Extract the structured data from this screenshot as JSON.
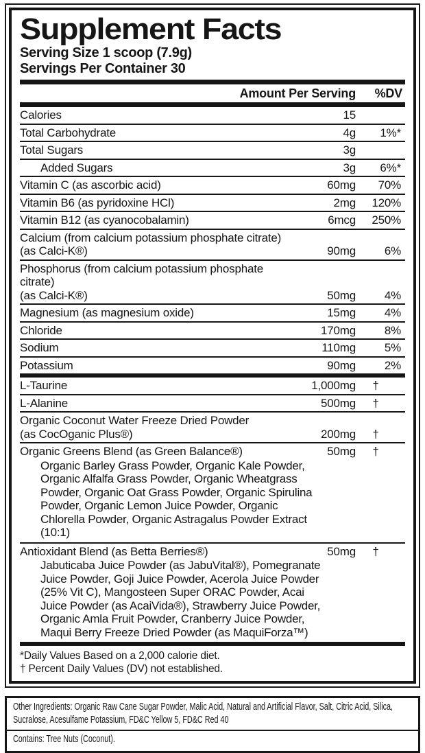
{
  "title": "Supplement Facts",
  "serving": {
    "size": "Serving Size 1 scoop (7.9g)",
    "per_container": "Servings Per Container 30"
  },
  "columns": {
    "amount": "Amount Per Serving",
    "dv": "%DV"
  },
  "rows": [
    {
      "name": [
        "Calories"
      ],
      "amount": "15",
      "dv": ""
    },
    {
      "name": [
        "Total Carbohydrate"
      ],
      "amount": "4g",
      "dv": "1%*"
    },
    {
      "name": [
        "Total Sugars"
      ],
      "amount": "3g",
      "dv": ""
    },
    {
      "name": [
        "Added Sugars"
      ],
      "indent": true,
      "amount": "3g",
      "dv": "6%*"
    },
    {
      "name": [
        "Vitamin C (as ascorbic acid)"
      ],
      "amount": "60mg",
      "dv": "70%"
    },
    {
      "name": [
        "Vitamin B6 (as pyridoxine HCl)"
      ],
      "amount": "2mg",
      "dv": "120%"
    },
    {
      "name": [
        "Vitamin B12 (as cyanocobalamin)"
      ],
      "amount": "6mcg",
      "dv": "250%"
    },
    {
      "name": [
        "Calcium (from calcium potassium phosphate citrate)",
        "(as Calci-K®)"
      ],
      "amount": "90mg",
      "dv": "6%"
    },
    {
      "name": [
        "Phosphorus (from calcium potassium phosphate citrate)",
        "(as Calci-K®)"
      ],
      "amount": "50mg",
      "dv": "4%"
    },
    {
      "name": [
        "Magnesium (as magnesium oxide)"
      ],
      "amount": "15mg",
      "dv": "4%"
    },
    {
      "name": [
        "Chloride"
      ],
      "amount": "170mg",
      "dv": "8%"
    },
    {
      "name": [
        "Sodium"
      ],
      "amount": "110mg",
      "dv": "5%"
    },
    {
      "name": [
        "Potassium"
      ],
      "amount": "90mg",
      "dv": "2%"
    },
    {
      "name": [
        "L-Taurine"
      ],
      "bar_before": true,
      "amount": "1,000mg",
      "dv": "†"
    },
    {
      "name": [
        "L-Alanine"
      ],
      "amount": "500mg",
      "dv": "†"
    },
    {
      "name": [
        "Organic Coconut Water Freeze Dried Powder",
        "(as CocOganic Plus®)"
      ],
      "amount": "200mg",
      "dv": "†"
    },
    {
      "name": [
        "Organic Greens Blend (as Green Balance®)"
      ],
      "amount": "50mg",
      "dv": "†",
      "sub": "Organic Barley Grass Powder, Organic Kale Powder, Organic Alfalfa Grass Powder, Organic Wheatgrass Powder, Organic Oat Grass Powder, Organic Spirulina Powder, Organic Lemon Juice Powder, Organic Chlorella Powder, Organic Astragalus Powder Extract (10:1)"
    },
    {
      "name": [
        "Antioxidant Blend (as Betta Berries®)"
      ],
      "amount": "50mg",
      "dv": "†",
      "sub": "Jabuticaba Juice Powder (as JabuVital®), Pomegranate Juice Powder, Goji Juice Powder, Acerola Juice Powder (25% Vit C), Mangosteen Super ORAC Powder, Acai Juice Powder (as AcaiVida®), Strawberry Juice Powder, Organic Amla Fruit Powder, Cranberry Juice Powder, Maqui Berry Freeze Dried Powder (as MaquiForza™)"
    }
  ],
  "footnotes": [
    "*Daily Values Based on a 2,000 calorie diet.",
    "† Percent Daily Values (DV) not established."
  ],
  "other_ingredients": "Other Ingredients: Organic Raw Cane Sugar Powder, Malic Acid, Natural and Artificial Flavor, Salt, Citric Acid, Silica, Sucralose, Acesulfame Potassium, FD&C Yellow 5, FD&C Red 40",
  "contains": "Contains: Tree Nuts (Coconut).",
  "colors": {
    "ink": "#161616",
    "background": "#ffffff"
  }
}
